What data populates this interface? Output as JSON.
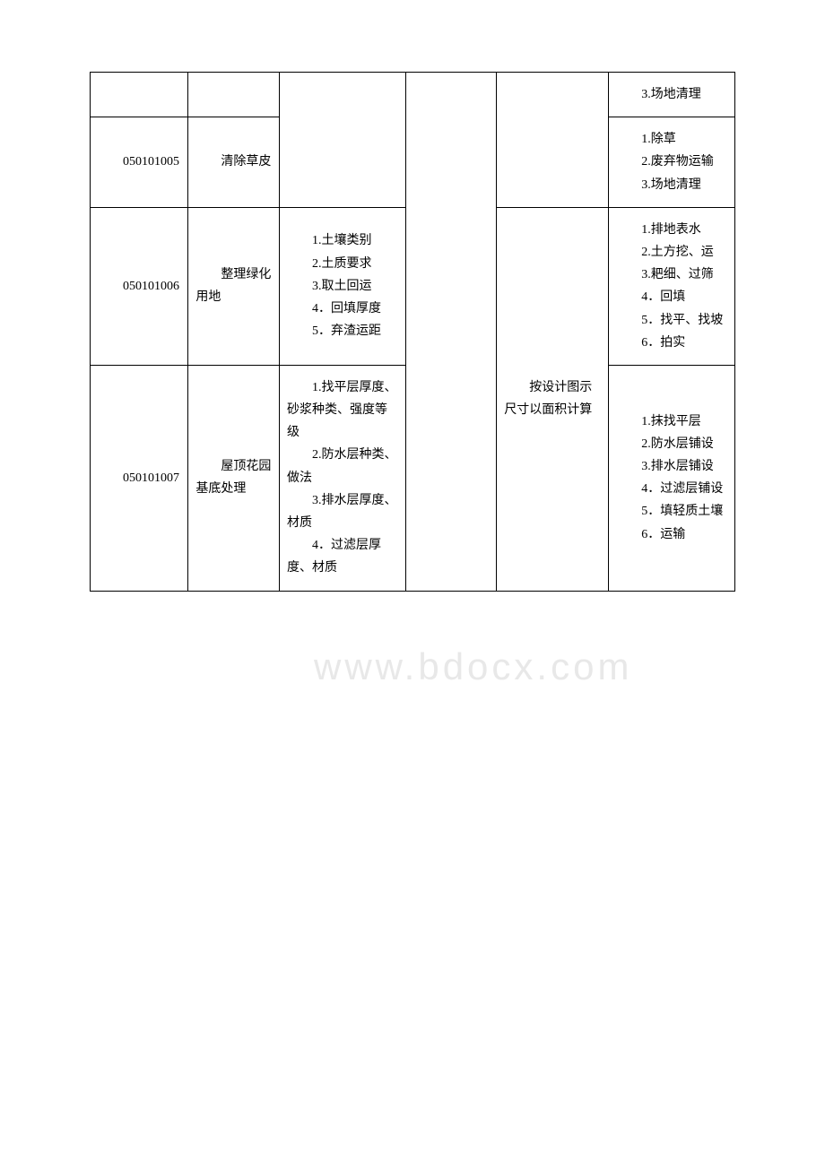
{
  "watermark": "www.bdocx.com",
  "table": {
    "rows": [
      {
        "code": "",
        "name": "",
        "desc": "",
        "unit": "",
        "calc": "",
        "work": "3.场地清理"
      },
      {
        "code": "050101005",
        "name": "清除草皮",
        "desc": "",
        "unit": "",
        "calc": "",
        "work": "1.除草\n2.废弃物运输\n3.场地清理"
      },
      {
        "code": "050101006",
        "name": "整理绿化用地",
        "desc": "1.土壤类别\n2.土质要求\n3.取土回运\n4．回填厚度\n5．弃渣运距",
        "unit": "",
        "calc": "按设计图示尺寸以面积计算",
        "work": "1.排地表水\n2.土方挖、运\n3.耙细、过筛\n4．回填\n5．找平、找坡\n6．拍实"
      },
      {
        "code": "050101007",
        "name": "屋顶花园基底处理",
        "desc": "1.找平层厚度、砂浆种类、强度等级\n2.防水层种类、做法\n3.排水层厚度、材质\n4．过滤层厚度、材质",
        "unit": "",
        "calc": "",
        "work": "1.抹找平层\n2.防水层铺设\n3.排水层铺设\n4．过滤层铺设\n5．填轻质土壤\n6．运输"
      }
    ]
  }
}
